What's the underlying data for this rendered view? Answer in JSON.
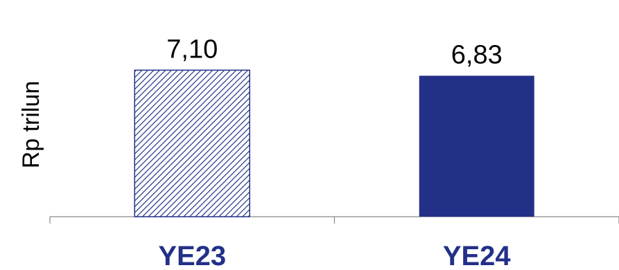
{
  "chart_data": {
    "type": "bar",
    "categories": [
      "YE23",
      "YE24"
    ],
    "values": [
      7.1,
      6.83
    ],
    "data_labels": [
      "7,10",
      "6,83"
    ],
    "title": "",
    "xlabel": "",
    "ylabel": "Rp trilun",
    "ylim": [
      0,
      10.5
    ],
    "grid": false,
    "legend": "none",
    "bar_styles": [
      "hatched",
      "solid"
    ],
    "colors": {
      "bar": "#233088",
      "axis": "#888888",
      "category_text": "#233088"
    }
  }
}
